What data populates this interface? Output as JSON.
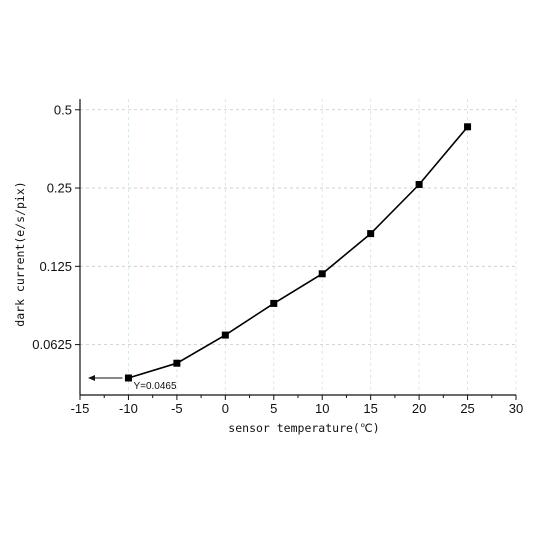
{
  "chart_data": {
    "type": "line",
    "title": "",
    "xlabel": "sensor temperature(℃)",
    "ylabel": "dark current(e/s/pix)",
    "y_scale": "log2",
    "xlim": [
      -15,
      30
    ],
    "ylim": [
      0.04,
      0.55
    ],
    "x_ticks": [
      -15,
      -10,
      -5,
      0,
      5,
      10,
      15,
      20,
      25,
      30
    ],
    "y_ticks": [
      0.0625,
      0.125,
      0.25,
      0.5
    ],
    "x_tick_labels": [
      "-15",
      "-10",
      "-5",
      "0",
      "5",
      "10",
      "15",
      "20",
      "25",
      "30"
    ],
    "y_tick_labels": [
      "0.0625",
      "0.125",
      "0.25",
      "0.5"
    ],
    "grid": true,
    "series": [
      {
        "x": [
          -10,
          -5,
          0,
          5,
          10,
          15,
          20,
          25
        ],
        "y": [
          0.0465,
          0.053,
          0.068,
          0.09,
          0.117,
          0.167,
          0.258,
          0.43
        ]
      }
    ],
    "annotations": [
      {
        "text": "Y=0.0465",
        "x": -10,
        "y": 0.0465,
        "arrow": "left"
      }
    ]
  }
}
